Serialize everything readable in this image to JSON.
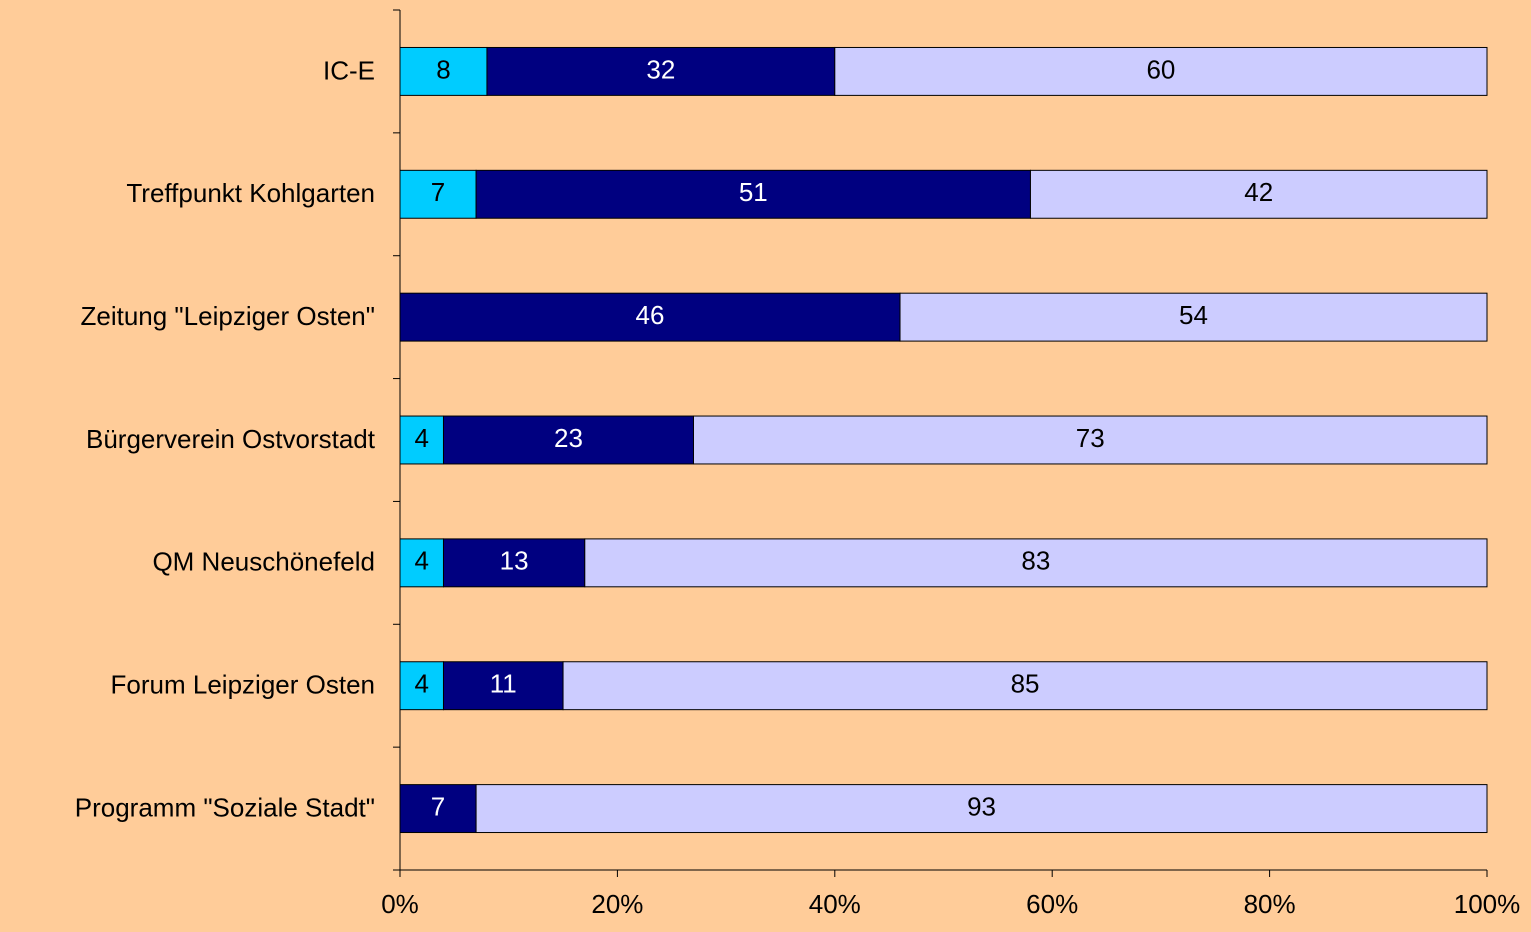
{
  "chart_data": {
    "type": "bar",
    "orientation": "horizontal",
    "stacked": true,
    "categories": [
      "IC-E",
      "Treffpunkt Kohlgarten",
      "Zeitung \"Leipziger Osten\"",
      "Bürgerverein Ostvorstadt",
      "QM Neuschönefeld",
      "Forum Leipziger Osten",
      "Programm \"Soziale Stadt\""
    ],
    "series": [
      {
        "color": "#00ccff",
        "values": [
          8,
          7,
          null,
          4,
          4,
          4,
          null
        ]
      },
      {
        "color": "#000080",
        "values": [
          32,
          51,
          46,
          23,
          13,
          11,
          7
        ]
      },
      {
        "color": "#ccccff",
        "values": [
          60,
          42,
          54,
          73,
          83,
          85,
          93
        ]
      }
    ],
    "xlim": [
      0,
      100
    ],
    "xticks": [
      {
        "value": 0,
        "label": "0%"
      },
      {
        "value": 20,
        "label": "20%"
      },
      {
        "value": 40,
        "label": "40%"
      },
      {
        "value": 60,
        "label": "60%"
      },
      {
        "value": 80,
        "label": "80%"
      },
      {
        "value": 100,
        "label": "100%"
      }
    ],
    "grid": false
  }
}
